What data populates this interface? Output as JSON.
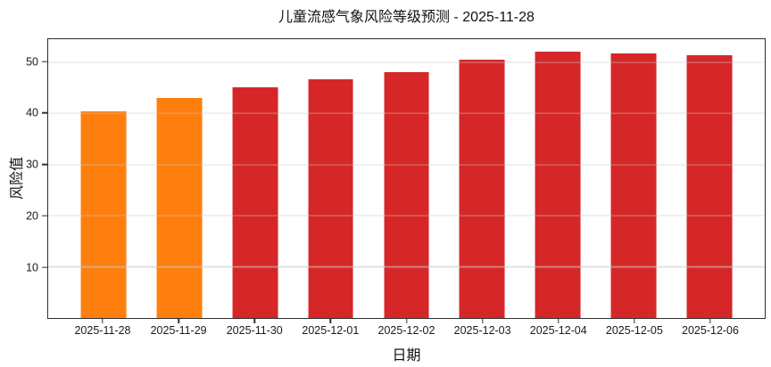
{
  "chart_data": {
    "type": "bar",
    "title": "儿童流感气象风险等级预测 - 2025-11-28",
    "xlabel": "日期",
    "ylabel": "风险值",
    "categories": [
      "2025-11-28",
      "2025-11-29",
      "2025-11-30",
      "2025-12-01",
      "2025-12-02",
      "2025-12-03",
      "2025-12-04",
      "2025-12-05",
      "2025-12-06"
    ],
    "values": [
      40.4,
      43.0,
      45.1,
      46.6,
      48.0,
      50.5,
      52.1,
      51.7,
      51.3
    ],
    "bar_colors": [
      "#ff7f0e",
      "#ff7f0e",
      "#d62728",
      "#d62728",
      "#d62728",
      "#d62728",
      "#d62728",
      "#d62728",
      "#d62728"
    ],
    "color_legend": {
      "orange_warning": "#ff7f0e",
      "red_high_risk": "#d62728"
    },
    "yticks": [
      10,
      20,
      30,
      40,
      50
    ],
    "ylim": [
      0,
      54.5
    ],
    "grid": true,
    "legend_position": "none"
  }
}
